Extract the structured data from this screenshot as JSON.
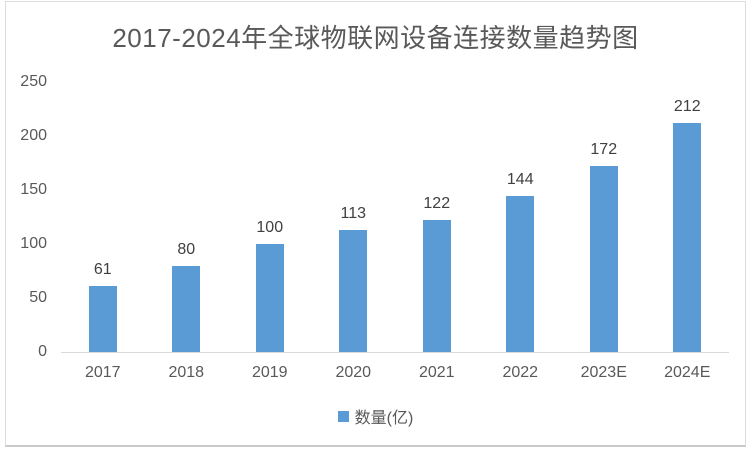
{
  "title": "2017-2024年全球物联网设备连接数量趋势图",
  "legend": {
    "label": "数量(亿)",
    "swatch_color": "#5b9bd5",
    "position": "bottom"
  },
  "colors": {
    "bar": "#5b9bd5",
    "axis_line": "#d9d9d9",
    "title_text": "#595959",
    "axis_text": "#595959",
    "data_label_text": "#404040",
    "card_border": "#dcdcdc"
  },
  "chart_data": {
    "type": "bar",
    "title": "2017-2024年全球物联网设备连接数量趋势图",
    "categories": [
      "2017",
      "2018",
      "2019",
      "2020",
      "2021",
      "2022",
      "2023E",
      "2024E"
    ],
    "series": [
      {
        "name": "数量(亿)",
        "values": [
          61,
          80,
          100,
          113,
          122,
          144,
          172,
          212
        ]
      }
    ],
    "xlabel": "",
    "ylabel": "",
    "ylim": [
      0,
      250
    ],
    "yticks": [
      0,
      50,
      100,
      150,
      200,
      250
    ],
    "grid": false,
    "data_labels": true,
    "legend_position": "bottom"
  }
}
